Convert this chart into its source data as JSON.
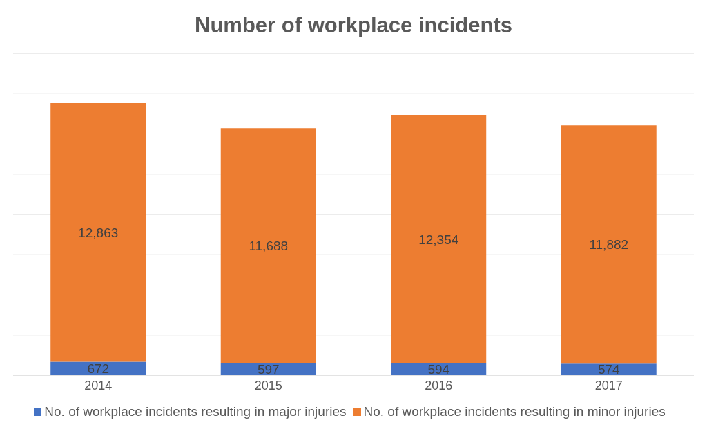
{
  "chart_data": {
    "type": "bar",
    "title": "Number of workplace incidents",
    "categories": [
      "2014",
      "2015",
      "2016",
      "2017"
    ],
    "series": [
      {
        "name": "No. of workplace incidents resulting in major injuries",
        "color": "#4472c4",
        "values": [
          672,
          597,
          594,
          574
        ],
        "value_labels": [
          "672",
          "597",
          "594",
          "574"
        ]
      },
      {
        "name": "No. of workplace incidents resulting in minor injuries",
        "color": "#ed7d31",
        "values": [
          12863,
          11688,
          12354,
          11882
        ],
        "value_labels": [
          "12,863",
          "11,688",
          "12,354",
          "11,882"
        ]
      }
    ],
    "stacked": true,
    "ylim": [
      0,
      16000
    ],
    "yticks": [
      {
        "value": 0,
        "label": null
      },
      {
        "value": 2000,
        "label": null
      },
      {
        "value": 4000,
        "label": null
      },
      {
        "value": 6000,
        "label": null
      },
      {
        "value": 8000,
        "label": null
      },
      {
        "value": 10000,
        "label": null
      },
      {
        "value": 12000,
        "label": null
      },
      {
        "value": 14000,
        "label": null
      },
      {
        "value": 16000,
        "label": null
      }
    ],
    "tick_labels": "x",
    "grid": "y",
    "legend": "bottom"
  }
}
